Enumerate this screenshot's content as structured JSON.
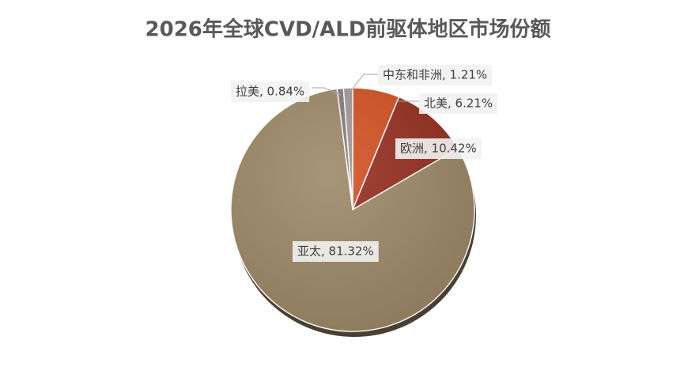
{
  "chart_data": {
    "type": "pie",
    "title": "2026年全球CVD/ALD前驱体地区市场份额",
    "values": [
      6.21,
      10.42,
      81.32,
      0.84,
      1.21
    ],
    "value_labels": [
      "北美, 6.21%",
      "欧洲, 10.42%",
      "亚太, 81.32%",
      "拉美, 0.84%",
      "中东和非洲, 1.21%"
    ],
    "colors": [
      "#d24f1f",
      "#952c1e",
      "#9c8766",
      "#857a78",
      "#a09699"
    ]
  }
}
